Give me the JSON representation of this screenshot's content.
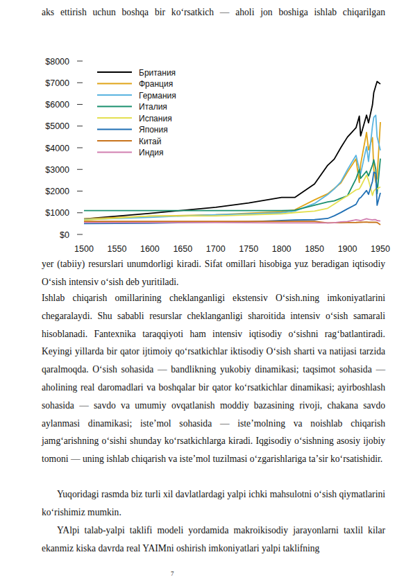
{
  "top_line": "aks ettirish uchun boshqa bir koʻrsatkich — aholi jon boshiga ishlab chiqarilgan",
  "chart_data": {
    "type": "line",
    "x": [
      1500,
      1600,
      1700,
      1750,
      1800,
      1820,
      1850,
      1870,
      1880,
      1890,
      1900,
      1913,
      1918,
      1920,
      1929,
      1932,
      1938,
      1940,
      1943,
      1945,
      1950
    ],
    "series": [
      {
        "name": "Британия",
        "color": "#000000",
        "values": [
          714,
          974,
          1250,
          1450,
          1706,
          1706,
          2330,
          3190,
          3477,
          4009,
          4492,
          4921,
          5459,
          4548,
          5503,
          5148,
          5983,
          6546,
          6856,
          7056,
          6939
        ]
      },
      {
        "name": "Франция",
        "color": "#e0a418",
        "values": [
          727,
          841,
          910,
          980,
          1050,
          1135,
          1597,
          1876,
          2120,
          2376,
          2876,
          3485,
          2396,
          3227,
          4710,
          3900,
          4466,
          3000,
          2400,
          2600,
          5186
        ]
      },
      {
        "name": "Германия",
        "color": "#5ab4e0",
        "values": [
          688,
          791,
          910,
          950,
          1000,
          1077,
          1428,
          1839,
          2100,
          2428,
          2985,
          3648,
          3000,
          2796,
          4051,
          3362,
          4994,
          5403,
          5500,
          4514,
          3881
        ]
      },
      {
        "name": "Италия",
        "color": "#1a8f6e",
        "values": [
          1100,
          1100,
          1100,
          1100,
          1100,
          1117,
          1350,
          1499,
          1550,
          1667,
          1785,
          2564,
          3000,
          2587,
          2918,
          2700,
          3200,
          3444,
          3000,
          1880,
          3502
        ]
      },
      {
        "name": "Испания",
        "color": "#e4e050",
        "values": [
          661,
          853,
          853,
          900,
          950,
          1008,
          1079,
          1207,
          1400,
          1600,
          1786,
          2056,
          2100,
          2200,
          2739,
          2500,
          1800,
          2000,
          2100,
          2100,
          2189
        ]
      },
      {
        "name": "Япония",
        "color": "#1f6fb4",
        "values": [
          500,
          520,
          570,
          590,
          640,
          669,
          680,
          737,
          860,
          1012,
          1180,
          1387,
          1668,
          1696,
          2026,
          1850,
          2449,
          2874,
          2817,
          1346,
          1921
        ]
      },
      {
        "name": "Китай",
        "color": "#c8741c",
        "values": [
          600,
          600,
          600,
          600,
          600,
          600,
          600,
          530,
          540,
          540,
          545,
          552,
          560,
          560,
          570,
          560,
          560,
          562,
          560,
          550,
          448
        ]
      },
      {
        "name": "Индия",
        "color": "#d27fb0",
        "values": [
          550,
          550,
          550,
          540,
          533,
          533,
          533,
          533,
          540,
          580,
          599,
          673,
          650,
          635,
          726,
          700,
          668,
          686,
          680,
          640,
          619
        ]
      }
    ],
    "xlim": [
      1500,
      1950
    ],
    "xticks": [
      1500,
      1550,
      1600,
      1650,
      1700,
      1750,
      1800,
      1850,
      1900,
      1950
    ],
    "ylim": [
      0,
      8000
    ],
    "yticks": [
      {
        "value": 0,
        "label": "$0"
      },
      {
        "value": 1000,
        "label": "$1000"
      },
      {
        "value": 2000,
        "label": "$2000"
      },
      {
        "value": 3000,
        "label": "$3000"
      },
      {
        "value": 4000,
        "label": "$4000"
      },
      {
        "value": 5000,
        "label": "$5000"
      },
      {
        "value": 6000,
        "label": "$6000"
      },
      {
        "value": 7000,
        "label": "$7000"
      },
      {
        "value": 8000,
        "label": "$8000"
      }
    ],
    "grid": false,
    "legend": "upper left"
  },
  "paragraphs": [
    "yer (tabiiy) resurslari unumdorligi kiradi. Sifat omillari hisobiga yuz beradigan iqtisodiy Oʻsish intensiv oʻsish deb yuritiladi.",
    "Ishlab chiqarish omillarining cheklanganligi ekstensiv Oʻsish.ning imkoniyatlarini chegaralaydi. Shu sababli resurslar cheklanganligi sharoitida intensiv oʻsish samarali hisoblanadi. Fantexnika taraqqiyoti ham intensiv iqtisodiy oʻsishni ragʻbatlantiradi. Keyingi yillarda bir qator ijtimoiy qoʻrsatkichlar iktisodiy Oʻsish sharti va natijasi tarzida qaralmoqda. Oʻsish sohasida — bandlikning yukobiy dinamikasi; taqsimot sohasida — aholining real daromadlari va boshqalar bir qator koʻrsatkichlar dinamikasi; ayirboshlash sohasida — savdo va umumiy ovqatlanish moddiy bazasining rivoji, chakana savdo aylanmasi dinamikasi; isteʼmol sohasida — isteʼmolning va noishlab chiqarish jamgʻarishning oʻsishi shunday koʻrsatkichlarga kiradi. Iqgisodiy oʻsishning asosiy ijobiy tomoni — uning ishlab chiqarish va isteʼmol tuzilmasi oʻzgarishlariga taʼsir koʻrsatishidir.",
    "Yuqoridagi rasmda biz turli xil davlatlardagi yalpi ichki mahsulotni oʻsish qiymatlarini koʻrishimiz mumkin.",
    "YAlpi talab-yalpi taklifi modeli yordamida makroikisodiy jarayonlarni taxlil kilar ekanmiz kiska davrda real YAIMni oshirish imkoniyatlari yalpi taklifning"
  ],
  "page_number": "7"
}
